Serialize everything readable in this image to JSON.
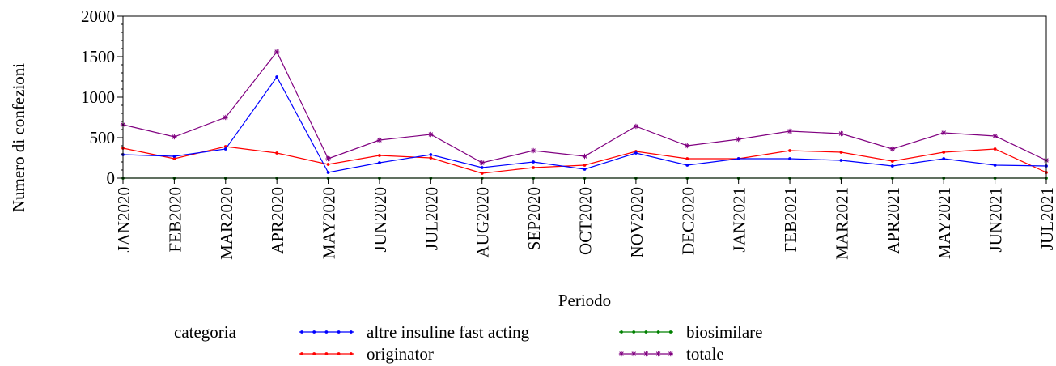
{
  "chart_data": {
    "type": "line",
    "xlabel": "Periodo",
    "ylabel": "Numero di confezioni",
    "ylim": [
      0,
      2000
    ],
    "yticks": [
      0,
      500,
      1000,
      1500,
      2000
    ],
    "grid": false,
    "categories": [
      "JAN2020",
      "FEB2020",
      "MAR2020",
      "APR2020",
      "MAY2020",
      "JUN2020",
      "JUL2020",
      "AUG2020",
      "SEP2020",
      "OCT2020",
      "NOV2020",
      "DEC2020",
      "JAN2021",
      "FEB2021",
      "MAR2021",
      "APR2021",
      "MAY2021",
      "JUN2021",
      "JUL2021"
    ],
    "legend": {
      "title": "categoria",
      "placement": "bottom"
    },
    "series": [
      {
        "name": "altre insuline fast acting",
        "color": "#0000ff",
        "marker": "dot",
        "values": [
          290,
          270,
          360,
          1250,
          70,
          190,
          290,
          130,
          200,
          110,
          310,
          160,
          240,
          240,
          220,
          150,
          240,
          160,
          150
        ]
      },
      {
        "name": "biosimilare",
        "color": "#008000",
        "marker": "dot",
        "values": [
          0,
          0,
          0,
          0,
          0,
          0,
          0,
          0,
          0,
          0,
          0,
          0,
          0,
          0,
          0,
          0,
          0,
          0,
          0
        ]
      },
      {
        "name": "originator",
        "color": "#ff0000",
        "marker": "dot",
        "values": [
          370,
          240,
          390,
          310,
          170,
          280,
          250,
          60,
          130,
          160,
          330,
          240,
          240,
          340,
          320,
          210,
          320,
          360,
          70
        ]
      },
      {
        "name": "totale",
        "color": "#800080",
        "marker": "star",
        "values": [
          660,
          510,
          750,
          1560,
          240,
          470,
          540,
          190,
          340,
          270,
          640,
          400,
          480,
          580,
          550,
          360,
          560,
          520,
          220
        ]
      }
    ]
  }
}
